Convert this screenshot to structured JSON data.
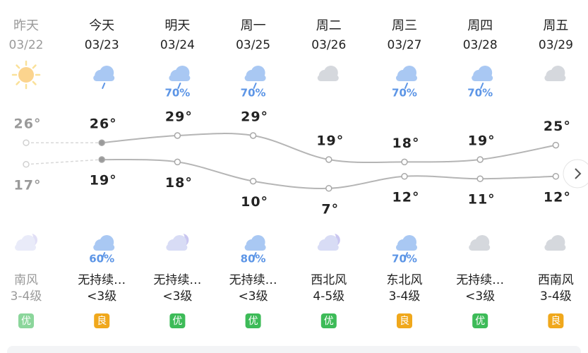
{
  "days": [
    {
      "name": "昨天",
      "date": "03/22",
      "high": 26,
      "high_label": "26°",
      "low": 17,
      "low_label": "17°",
      "wind_dir": "南风",
      "wind_level": "3-4级",
      "aqi": "优",
      "aqi_color": "#3dbb58"
    },
    {
      "name": "今天",
      "date": "03/23",
      "high": 26,
      "high_label": "26°",
      "low": 19,
      "low_label": "19°",
      "night_precip": "60%",
      "wind_dir": "无持续…",
      "wind_level": "<3级",
      "aqi": "良",
      "aqi_color": "#f0a81c"
    },
    {
      "name": "明天",
      "date": "03/24",
      "day_precip": "70%",
      "high": 29,
      "high_label": "29°",
      "low": 18,
      "low_label": "18°",
      "wind_dir": "无持续…",
      "wind_level": "<3级",
      "aqi": "优",
      "aqi_color": "#3dbb58"
    },
    {
      "name": "周一",
      "date": "03/25",
      "day_precip": "70%",
      "high": 29,
      "high_label": "29°",
      "low": 10,
      "low_label": "10°",
      "night_precip": "80%",
      "wind_dir": "无持续…",
      "wind_level": "<3级",
      "aqi": "优",
      "aqi_color": "#3dbb58"
    },
    {
      "name": "周二",
      "date": "03/26",
      "high": 19,
      "high_label": "19°",
      "low": 7,
      "low_label": "7°",
      "wind_dir": "西北风",
      "wind_level": "4-5级",
      "aqi": "优",
      "aqi_color": "#3dbb58"
    },
    {
      "name": "周三",
      "date": "03/27",
      "day_precip": "70%",
      "high": 18,
      "high_label": "18°",
      "low": 12,
      "low_label": "12°",
      "night_precip": "70%",
      "wind_dir": "东北风",
      "wind_level": "3-4级",
      "aqi": "良",
      "aqi_color": "#f0a81c"
    },
    {
      "name": "周四",
      "date": "03/28",
      "day_precip": "70%",
      "high": 19,
      "high_label": "19°",
      "low": 11,
      "low_label": "11°",
      "wind_dir": "无持续…",
      "wind_level": "<3级",
      "aqi": "优",
      "aqi_color": "#3dbb58"
    },
    {
      "name": "周五",
      "date": "03/29",
      "high": 25,
      "high_label": "25°",
      "low": 12,
      "low_label": "12°",
      "wind_dir": "西南风",
      "wind_level": "3-4级",
      "aqi": "良",
      "aqi_color": "#f0a81c"
    }
  ]
}
